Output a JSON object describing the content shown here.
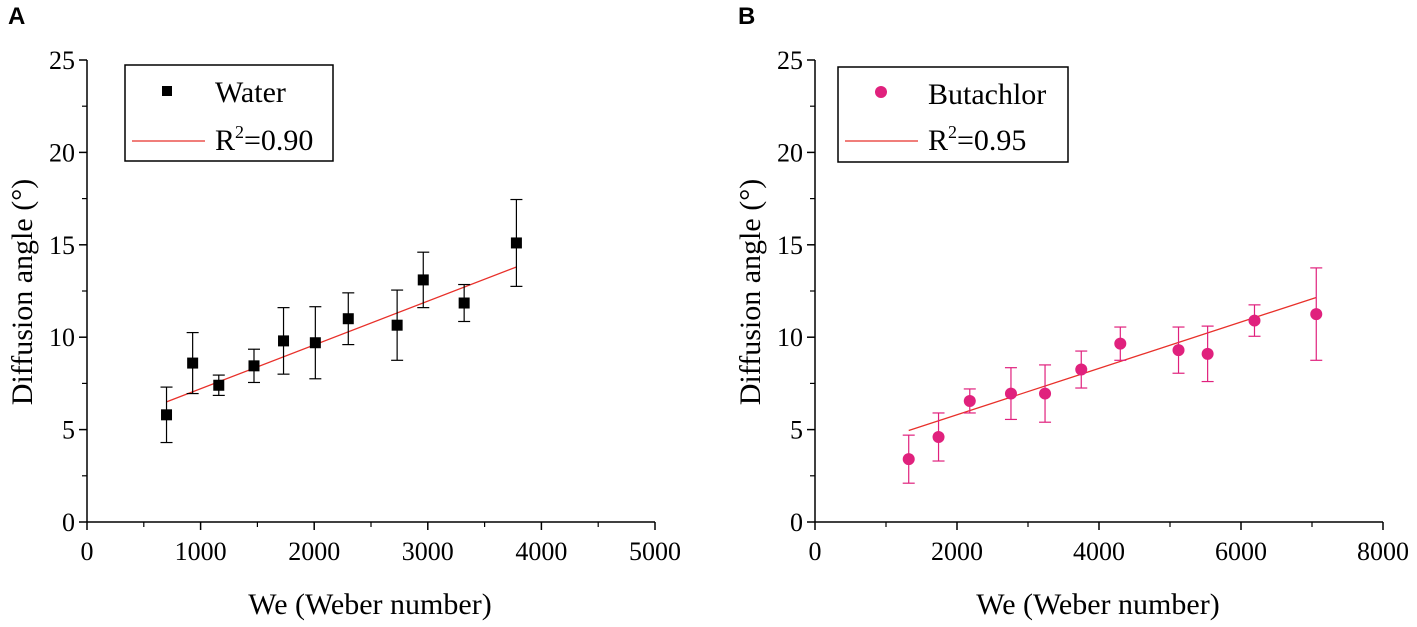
{
  "chart_data": [
    {
      "panel_label": "A",
      "type": "scatter",
      "xlabel": "We (Weber number)",
      "ylabel": "Diffusion angle (°)",
      "xlim": [
        0,
        5000
      ],
      "ylim": [
        0,
        25
      ],
      "xticks": [
        0,
        1000,
        2000,
        3000,
        4000,
        5000
      ],
      "yticks": [
        0,
        5,
        10,
        15,
        20,
        25
      ],
      "marker": "square",
      "point_color": "#000000",
      "fit_color": "#e8302a",
      "series": [
        {
          "name": "Water",
          "points": [
            {
              "x": 700,
              "y": 5.8,
              "err": 1.5
            },
            {
              "x": 930,
              "y": 8.6,
              "err": 1.65
            },
            {
              "x": 1160,
              "y": 7.4,
              "err": 0.55
            },
            {
              "x": 1470,
              "y": 8.45,
              "err": 0.9
            },
            {
              "x": 1730,
              "y": 9.8,
              "err": 1.8
            },
            {
              "x": 2010,
              "y": 9.7,
              "err": 1.95
            },
            {
              "x": 2300,
              "y": 11.0,
              "err": 1.4
            },
            {
              "x": 2730,
              "y": 10.65,
              "err": 1.9
            },
            {
              "x": 2960,
              "y": 13.1,
              "err": 1.5
            },
            {
              "x": 3320,
              "y": 11.85,
              "err": 1.0
            },
            {
              "x": 3780,
              "y": 15.1,
              "err": 2.35
            }
          ],
          "fit": {
            "x1": 700,
            "y1": 6.5,
            "x2": 3780,
            "y2": 13.8
          }
        }
      ],
      "legend": {
        "series_label": "Water",
        "fit_label": "R",
        "fit_sup": "2",
        "fit_value": "=0.90"
      }
    },
    {
      "panel_label": "B",
      "type": "scatter",
      "xlabel": "We (Weber number)",
      "ylabel": "Diffusion angle (°)",
      "xlim": [
        0,
        8000
      ],
      "ylim": [
        0,
        25
      ],
      "xticks": [
        0,
        2000,
        4000,
        6000,
        8000
      ],
      "yticks": [
        0,
        5,
        10,
        15,
        20,
        25
      ],
      "marker": "circle",
      "point_color": "#e0217d",
      "fit_color": "#e8302a",
      "series": [
        {
          "name": "Butachlor",
          "points": [
            {
              "x": 1320,
              "y": 3.4,
              "err": 1.3
            },
            {
              "x": 1740,
              "y": 4.6,
              "err": 1.3
            },
            {
              "x": 2180,
              "y": 6.55,
              "err": 0.65
            },
            {
              "x": 2760,
              "y": 6.95,
              "err": 1.4
            },
            {
              "x": 3240,
              "y": 6.95,
              "err": 1.55
            },
            {
              "x": 3750,
              "y": 8.25,
              "err": 1.0
            },
            {
              "x": 4300,
              "y": 9.65,
              "err": 0.9
            },
            {
              "x": 5120,
              "y": 9.3,
              "err": 1.25
            },
            {
              "x": 5530,
              "y": 9.1,
              "err": 1.5
            },
            {
              "x": 6190,
              "y": 10.9,
              "err": 0.85
            },
            {
              "x": 7060,
              "y": 11.25,
              "err": 2.5
            }
          ],
          "fit": {
            "x1": 1320,
            "y1": 4.95,
            "x2": 7060,
            "y2": 12.15
          }
        }
      ],
      "legend": {
        "series_label": "Butachlor",
        "fit_label": "R",
        "fit_sup": "2",
        "fit_value": "=0.95"
      }
    }
  ]
}
